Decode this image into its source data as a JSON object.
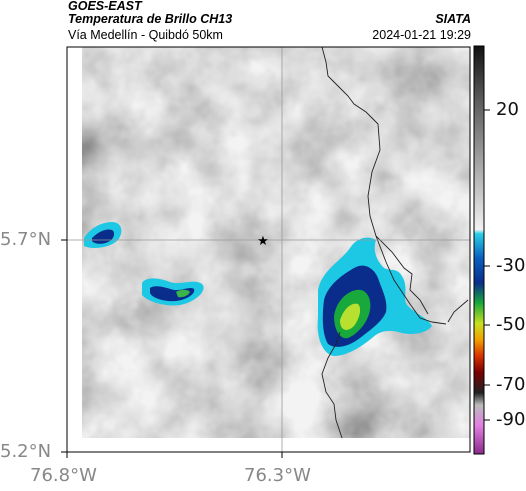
{
  "header": {
    "title": "GOES-EAST",
    "subtitle": "Temperatura de Brillo CH13",
    "location": "Vía Medellín - Quibdó 50km",
    "org": "SIATA",
    "datetime": "2024-01-21 19:29"
  },
  "axes": {
    "x_ticks": [
      "76.8°W",
      "76.3°W"
    ],
    "y_ticks": [
      "5.7°N",
      "5.2°N"
    ]
  },
  "colorbar": {
    "ticks": [
      "20",
      "-30",
      "-50",
      "-70",
      "-90"
    ]
  },
  "map": {
    "marker": "star-marker",
    "colors": {
      "cloud_dark_gray": "#8a8a8a",
      "cloud_light": "#ececec",
      "cold_cyan": "#12b8d8",
      "cold_blue": "#0a2d8c",
      "core_green": "#39b54a",
      "boundary": "#222222"
    }
  }
}
